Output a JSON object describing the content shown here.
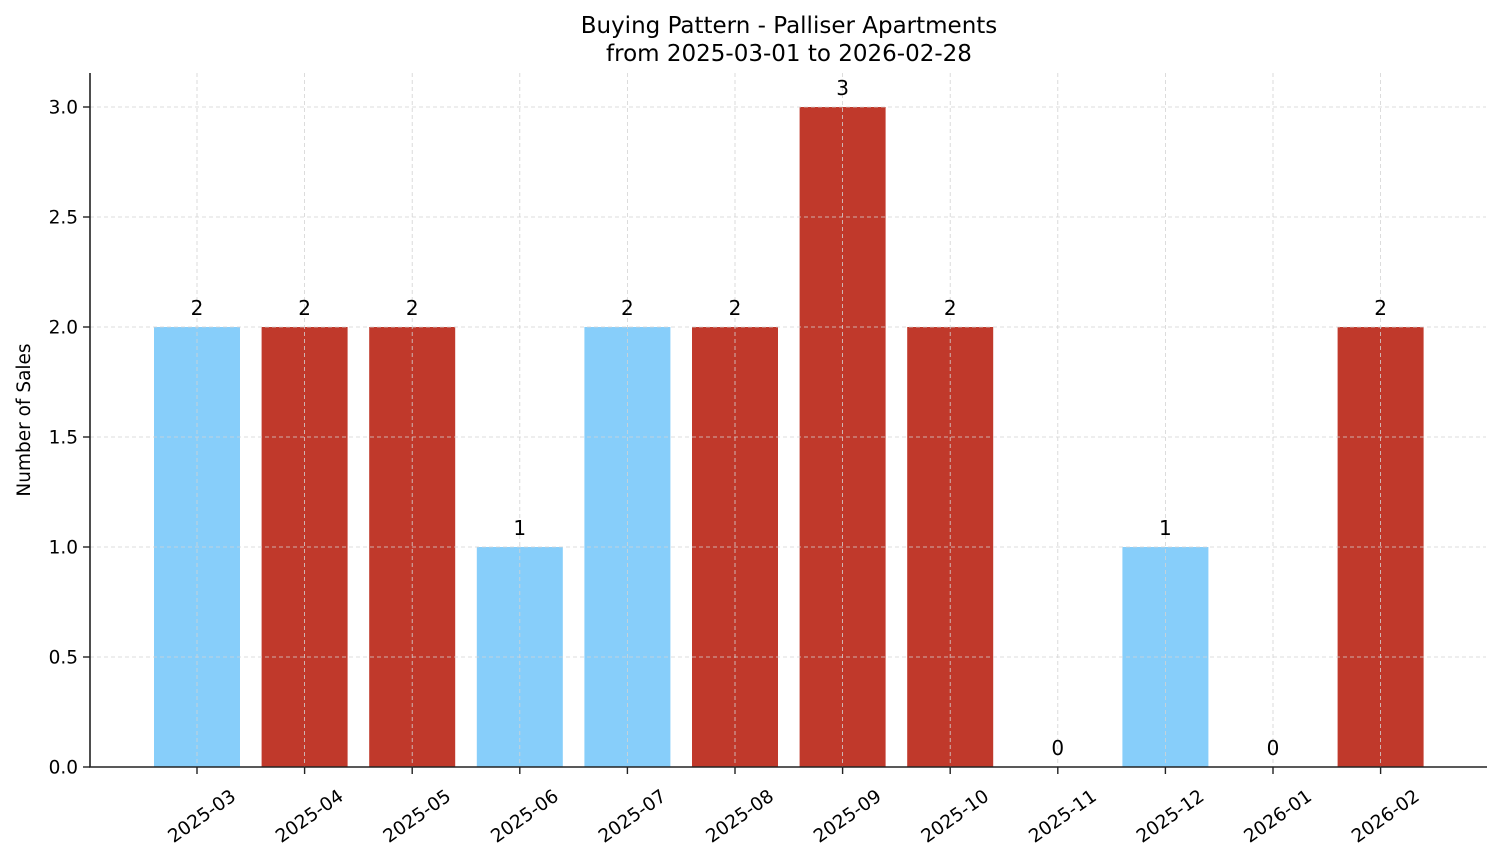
{
  "chart_data": {
    "type": "bar",
    "title": "Buying Pattern - Palliser Apartments",
    "subtitle": "from 2025-03-01 to 2026-02-28",
    "xlabel": "",
    "ylabel": "Number of Sales",
    "categories": [
      "2025-03",
      "2025-04",
      "2025-05",
      "2025-06",
      "2025-07",
      "2025-08",
      "2025-09",
      "2025-10",
      "2025-11",
      "2025-12",
      "2026-01",
      "2026-02"
    ],
    "values": [
      2,
      2,
      2,
      1,
      2,
      2,
      3,
      2,
      0,
      1,
      0,
      2
    ],
    "bar_colors": [
      "#87CEFA",
      "#C0392B",
      "#C0392B",
      "#87CEFA",
      "#87CEFA",
      "#C0392B",
      "#C0392B",
      "#C0392B",
      "#87CEFA",
      "#87CEFA",
      "#87CEFA",
      "#C0392B"
    ],
    "data_labels": [
      "2",
      "2",
      "2",
      "1",
      "2",
      "2",
      "3",
      "2",
      "0",
      "1",
      "0",
      "2"
    ],
    "ylim": [
      0,
      3.15
    ],
    "yticks": [
      0.0,
      0.5,
      1.0,
      1.5,
      2.0,
      2.5,
      3.0
    ],
    "ytick_labels": [
      "0.0",
      "0.5",
      "1.0",
      "1.5",
      "2.0",
      "2.5",
      "3.0"
    ],
    "grid": true,
    "grid_style": "dashed",
    "legend": null,
    "xtick_rotation": 35
  },
  "colors": {
    "light_blue": "#87CEFA",
    "red": "#C0392B",
    "grid": "#d3d3d3",
    "axis": "#222222"
  }
}
